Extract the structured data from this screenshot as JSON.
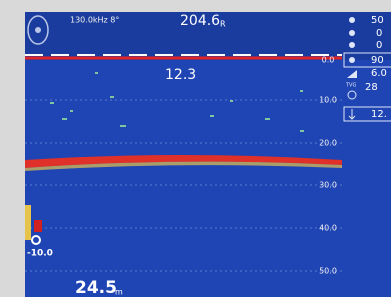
{
  "header": {
    "frequency": "130.0kHz 8°",
    "depth_top": "204.6",
    "depth_unit": "R"
  },
  "range_labels": [
    "0.0",
    "10.0",
    "20.0",
    "30.0",
    "40.0",
    "50.0"
  ],
  "center_readout": "12.3",
  "offset_label": "-10.0",
  "bottom_depth": "24.5",
  "bottom_unit": "m",
  "icon_label": "TVG",
  "status_values": [
    "50",
    "0",
    "0",
    "90",
    "6.0",
    "28",
    "12."
  ]
}
